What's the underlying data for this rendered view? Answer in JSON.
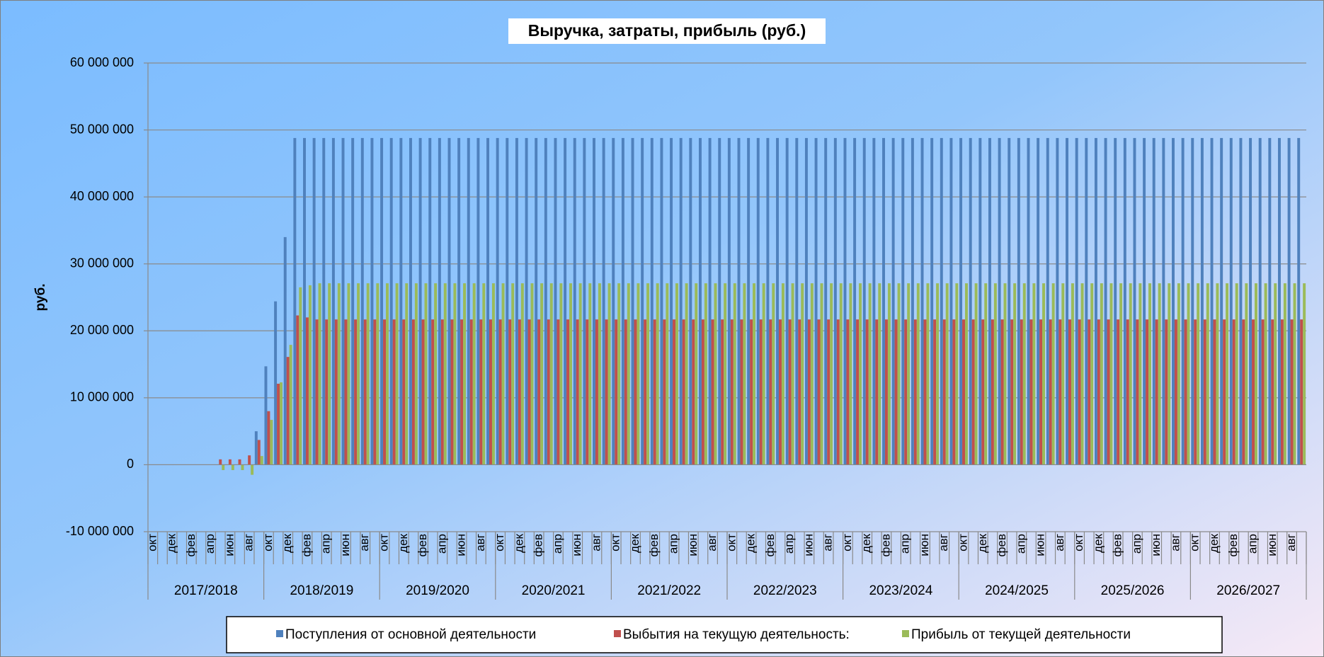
{
  "chart_data": {
    "type": "bar",
    "title": "Выручка, затраты, прибыль (руб.)",
    "y_label": "руб.",
    "categories": [
      "окт",
      null,
      "дек",
      null,
      "фев",
      null,
      "апр",
      null,
      "июн",
      null,
      "авг",
      null,
      "окт",
      null,
      "дек",
      null,
      "фев",
      null,
      "апр",
      null,
      "июн",
      null,
      "авг",
      null,
      "окт",
      null,
      "дек",
      null,
      "фев",
      null,
      "апр",
      null,
      "июн",
      null,
      "авг",
      null,
      "окт",
      null,
      "дек",
      null,
      "фев",
      null,
      "апр",
      null,
      "июн",
      null,
      "авг",
      null,
      "окт",
      null,
      "дек",
      null,
      "фев",
      null,
      "апр",
      null,
      "июн",
      null,
      "авг",
      null,
      "окт",
      null,
      "дек",
      null,
      "фев",
      null,
      "апр",
      null,
      "июн",
      null,
      "авг",
      null,
      "окт",
      null,
      "дек",
      null,
      "фев",
      null,
      "апр",
      null,
      "июн",
      null,
      "авг",
      null,
      "окт",
      null,
      "дек",
      null,
      "фев",
      null,
      "апр",
      null,
      "июн",
      null,
      "авг",
      null,
      "окт",
      null,
      "дек",
      null,
      "фев",
      null,
      "апр",
      null,
      "июн",
      null,
      "авг",
      null,
      "окт",
      null,
      "дек",
      null,
      "фев",
      null,
      "апр",
      null,
      "июн",
      null,
      "авг",
      null
    ],
    "groups": [
      "2017/2018",
      "2018/2019",
      "2019/2020",
      "2020/2021",
      "2021/2022",
      "2022/2023",
      "2023/2024",
      "2024/2025",
      "2025/2026",
      "2026/2027"
    ],
    "series": [
      {
        "name": "Поступления от основной деятельности",
        "color": "#4f81bd",
        "values": [
          0,
          0,
          0,
          0,
          0,
          0,
          0,
          0,
          0,
          0,
          0,
          5000000,
          14700000,
          24400000,
          34000000,
          48800000,
          48800000,
          48800000,
          48800000,
          48800000,
          48800000,
          48800000,
          48800000,
          48800000,
          48800000,
          48800000,
          48800000,
          48800000,
          48800000,
          48800000,
          48800000,
          48800000,
          48800000,
          48800000,
          48800000,
          48800000,
          48800000,
          48800000,
          48800000,
          48800000,
          48800000,
          48800000,
          48800000,
          48800000,
          48800000,
          48800000,
          48800000,
          48800000,
          48800000,
          48800000,
          48800000,
          48800000,
          48800000,
          48800000,
          48800000,
          48800000,
          48800000,
          48800000,
          48800000,
          48800000,
          48800000,
          48800000,
          48800000,
          48800000,
          48800000,
          48800000,
          48800000,
          48800000,
          48800000,
          48800000,
          48800000,
          48800000,
          48800000,
          48800000,
          48800000,
          48800000,
          48800000,
          48800000,
          48800000,
          48800000,
          48800000,
          48800000,
          48800000,
          48800000,
          48800000,
          48800000,
          48800000,
          48800000,
          48800000,
          48800000,
          48800000,
          48800000,
          48800000,
          48800000,
          48800000,
          48800000,
          48800000,
          48800000,
          48800000,
          48800000,
          48800000,
          48800000,
          48800000,
          48800000,
          48800000,
          48800000,
          48800000,
          48800000,
          48800000,
          48800000,
          48800000,
          48800000,
          48800000,
          48800000,
          48800000,
          48800000,
          48800000,
          48800000,
          48800000,
          48800000
        ]
      },
      {
        "name": "Выбытия на текущую деятельность:",
        "color": "#c0504d",
        "values": [
          0,
          0,
          0,
          0,
          0,
          0,
          0,
          800000,
          800000,
          800000,
          1400000,
          3700000,
          8000000,
          12100000,
          16100000,
          22300000,
          22000000,
          21700000,
          21700000,
          21700000,
          21700000,
          21700000,
          21700000,
          21700000,
          21700000,
          21700000,
          21700000,
          21700000,
          21700000,
          21700000,
          21700000,
          21700000,
          21700000,
          21700000,
          21700000,
          21700000,
          21700000,
          21700000,
          21700000,
          21700000,
          21700000,
          21700000,
          21700000,
          21700000,
          21700000,
          21700000,
          21700000,
          21700000,
          21700000,
          21700000,
          21700000,
          21700000,
          21700000,
          21700000,
          21700000,
          21700000,
          21700000,
          21700000,
          21700000,
          21700000,
          21700000,
          21700000,
          21700000,
          21700000,
          21700000,
          21700000,
          21700000,
          21700000,
          21700000,
          21700000,
          21700000,
          21700000,
          21700000,
          21700000,
          21700000,
          21700000,
          21700000,
          21700000,
          21700000,
          21700000,
          21700000,
          21700000,
          21700000,
          21700000,
          21700000,
          21700000,
          21700000,
          21700000,
          21700000,
          21700000,
          21700000,
          21700000,
          21700000,
          21700000,
          21700000,
          21700000,
          21700000,
          21700000,
          21700000,
          21700000,
          21700000,
          21700000,
          21700000,
          21700000,
          21700000,
          21700000,
          21700000,
          21700000,
          21700000,
          21700000,
          21700000,
          21700000,
          21700000,
          21700000,
          21700000,
          21700000,
          21700000,
          21700000,
          21700000,
          21700000
        ]
      },
      {
        "name": "Прибыль от текущей деятельности",
        "color": "#9bbb59",
        "values": [
          0,
          0,
          0,
          0,
          0,
          0,
          0,
          -800000,
          -800000,
          -800000,
          -1500000,
          1300000,
          6700000,
          12300000,
          17900000,
          26500000,
          26800000,
          27100000,
          27100000,
          27100000,
          27100000,
          27100000,
          27100000,
          27100000,
          27100000,
          27100000,
          27100000,
          27100000,
          27100000,
          27100000,
          27100000,
          27100000,
          27100000,
          27100000,
          27100000,
          27100000,
          27100000,
          27100000,
          27100000,
          27100000,
          27100000,
          27100000,
          27100000,
          27100000,
          27100000,
          27100000,
          27100000,
          27100000,
          27100000,
          27100000,
          27100000,
          27100000,
          27100000,
          27100000,
          27100000,
          27100000,
          27100000,
          27100000,
          27100000,
          27100000,
          27100000,
          27100000,
          27100000,
          27100000,
          27100000,
          27100000,
          27100000,
          27100000,
          27100000,
          27100000,
          27100000,
          27100000,
          27100000,
          27100000,
          27100000,
          27100000,
          27100000,
          27100000,
          27100000,
          27100000,
          27100000,
          27100000,
          27100000,
          27100000,
          27100000,
          27100000,
          27100000,
          27100000,
          27100000,
          27100000,
          27100000,
          27100000,
          27100000,
          27100000,
          27100000,
          27100000,
          27100000,
          27100000,
          27100000,
          27100000,
          27100000,
          27100000,
          27100000,
          27100000,
          27100000,
          27100000,
          27100000,
          27100000,
          27100000,
          27100000,
          27100000,
          27100000,
          27100000,
          27100000,
          27100000,
          27100000,
          27100000,
          27100000,
          27100000,
          27100000
        ]
      }
    ],
    "ylim": [
      -10000000,
      60000000
    ],
    "yticks": [
      {
        "value": -10000000,
        "label": "-10 000 000"
      },
      0,
      {
        "value": 10000000,
        "label": "10 000 000"
      },
      {
        "value": 20000000,
        "label": "20 000 000"
      },
      {
        "value": 30000000,
        "label": "30 000 000"
      },
      {
        "value": 40000000,
        "label": "40 000 000"
      },
      {
        "value": 50000000,
        "label": "50 000 000"
      },
      {
        "value": 60000000,
        "label": "60 000 000"
      }
    ],
    "grid": true,
    "legend": "bottom"
  }
}
